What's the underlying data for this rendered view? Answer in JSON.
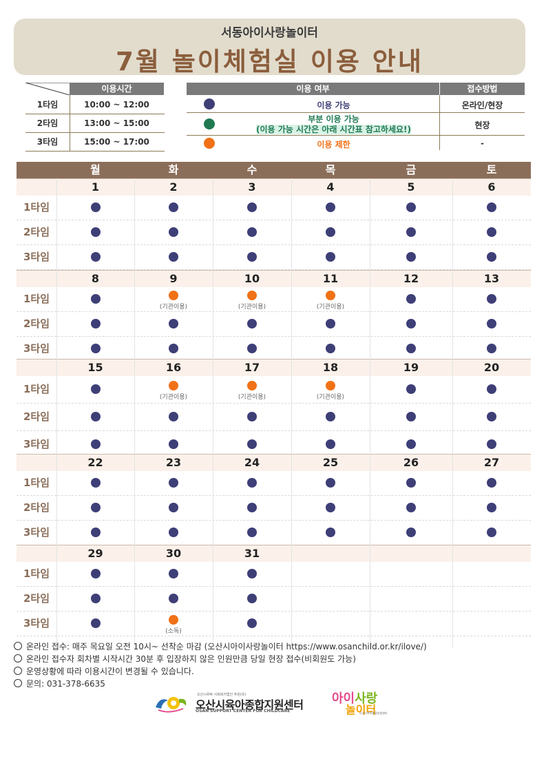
{
  "header": {
    "subtitle": "서동아이사랑놀이터",
    "title": "7월 놀이체험실 이용 안내"
  },
  "time_table": {
    "header": "이용시간",
    "rows": [
      {
        "label": "1타임",
        "time": "10:00 ~ 12:00"
      },
      {
        "label": "2타임",
        "time": "13:00 ~ 15:00"
      },
      {
        "label": "3타임",
        "time": "15:00 ~ 17:00"
      }
    ]
  },
  "legend": {
    "header_usage": "이용 여부",
    "header_method": "접수방법",
    "rows": [
      {
        "color": "#3e3f77",
        "text": "이용 가능",
        "text_color": "#3e3f77",
        "method": "온라인/현장"
      },
      {
        "color": "#1f7a52",
        "text": "부분 이용 가능",
        "text2": "(이용 가능 시간은 아래 시간표 참고하세요!)",
        "text_color": "#1f7a52",
        "method": "현장"
      },
      {
        "color": "#f17116",
        "text": "이용 제한",
        "text_color": "#f17116",
        "method": "-"
      }
    ]
  },
  "calendar": {
    "weekdays": [
      "월",
      "화",
      "수",
      "목",
      "금",
      "토"
    ],
    "slot_labels": [
      "1타임",
      "2타임",
      "3타임"
    ],
    "weeks": [
      {
        "dates": [
          "1",
          "2",
          "3",
          "4",
          "5",
          "6"
        ],
        "slots": [
          [
            "ok",
            "ok",
            "ok",
            "ok",
            "ok",
            "ok"
          ],
          [
            "ok",
            "ok",
            "ok",
            "ok",
            "ok",
            "ok"
          ],
          [
            "ok",
            "ok",
            "ok",
            "ok",
            "ok",
            "ok"
          ]
        ],
        "notes": [
          [
            "",
            "",
            "",
            "",
            "",
            ""
          ],
          [
            "",
            "",
            "",
            "",
            "",
            ""
          ],
          [
            "",
            "",
            "",
            "",
            "",
            ""
          ]
        ]
      },
      {
        "dates": [
          "8",
          "9",
          "10",
          "11",
          "12",
          "13"
        ],
        "slots": [
          [
            "ok",
            "lim",
            "lim",
            "lim",
            "ok",
            "ok"
          ],
          [
            "ok",
            "ok",
            "ok",
            "ok",
            "ok",
            "ok"
          ],
          [
            "ok",
            "ok",
            "ok",
            "ok",
            "ok",
            "ok"
          ]
        ],
        "notes": [
          [
            "",
            "(기관이용)",
            "(기관이용)",
            "(기관이용)",
            "",
            ""
          ],
          [
            "",
            "",
            "",
            "",
            "",
            ""
          ],
          [
            "",
            "",
            "",
            "",
            "",
            ""
          ]
        ]
      },
      {
        "dates": [
          "15",
          "16",
          "17",
          "18",
          "19",
          "20"
        ],
        "slots": [
          [
            "ok",
            "lim",
            "lim",
            "lim",
            "ok",
            "ok"
          ],
          [
            "ok",
            "ok",
            "ok",
            "ok",
            "ok",
            "ok"
          ],
          [
            "ok",
            "ok",
            "ok",
            "ok",
            "ok",
            "ok"
          ]
        ],
        "notes": [
          [
            "",
            "(기관이용)",
            "(기관이용)",
            "(기관이용)",
            "",
            ""
          ],
          [
            "",
            "",
            "",
            "",
            "",
            ""
          ],
          [
            "",
            "",
            "",
            "",
            "",
            ""
          ]
        ]
      },
      {
        "dates": [
          "22",
          "23",
          "24",
          "25",
          "26",
          "27"
        ],
        "slots": [
          [
            "ok",
            "ok",
            "ok",
            "ok",
            "ok",
            "ok"
          ],
          [
            "ok",
            "ok",
            "ok",
            "ok",
            "ok",
            "ok"
          ],
          [
            "ok",
            "ok",
            "ok",
            "ok",
            "ok",
            "ok"
          ]
        ],
        "notes": [
          [
            "",
            "",
            "",
            "",
            "",
            ""
          ],
          [
            "",
            "",
            "",
            "",
            "",
            ""
          ],
          [
            "",
            "",
            "",
            "",
            "",
            ""
          ]
        ]
      },
      {
        "dates": [
          "29",
          "30",
          "31",
          "",
          "",
          ""
        ],
        "slots": [
          [
            "ok",
            "ok",
            "ok",
            "",
            "",
            ""
          ],
          [
            "ok",
            "ok",
            "ok",
            "",
            "",
            ""
          ],
          [
            "ok",
            "lim",
            "ok",
            "",
            "",
            ""
          ]
        ],
        "notes": [
          [
            "",
            "",
            "",
            "",
            "",
            ""
          ],
          [
            "",
            "",
            "",
            "",
            "",
            ""
          ],
          [
            "",
            "(소독)",
            "",
            "",
            "",
            ""
          ]
        ]
      }
    ]
  },
  "footnotes": [
    "온라인 접수: 매주 목요일 오전 10시~ 선착순 마감 (오산시아이사랑놀이터 https://www.osanchild.or.kr/ilove/)",
    "온라인 접수자 회차별 시작시간 30분 후 입장하지 않은 인원만큼 당일 현장 접수(비회원도 가능)",
    "운영상황에 따라 이용시간이 변경될 수 있습니다.",
    "문의: 031-378-6635"
  ],
  "logos": {
    "center_tiny": "오산시위탁 사회복지법인 주원(유)",
    "center_name": "오산시육아종합지원센터",
    "center_eng": "OSAN SUPPORT CENTER FOR CHILDCARE",
    "play_a": "아이",
    "play_b": "사랑",
    "play_c": "놀이터",
    "play_tiny": "오산시육아종합지원센터"
  }
}
